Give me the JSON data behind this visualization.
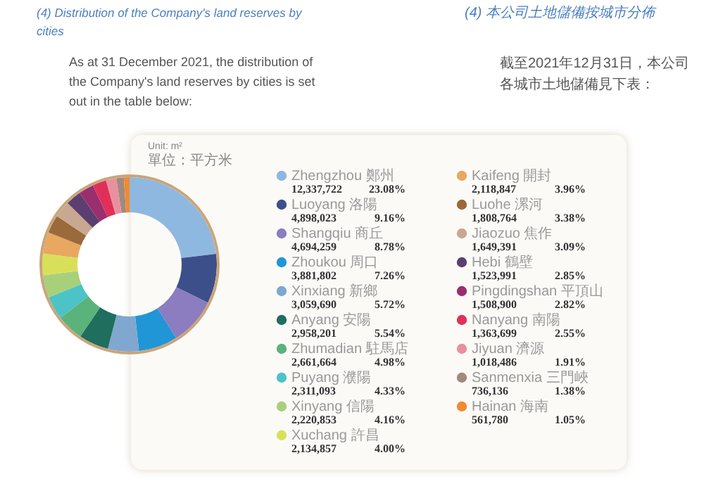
{
  "chart_data": {
    "type": "donut",
    "title": "(4) Distribution of the Company's land reserves by cities",
    "subtitle": "As at 31 December 2021, the distribution of the Company's land reserves by cities is set out in the table below:",
    "annotations": [
      "(4) 本公司土地儲備按城市分佈",
      "截至2021年12月31日，本公司各城市土地儲備見下表：",
      "Unit: m²",
      "單位：平方米"
    ],
    "categories": [
      "Zhengzhou 鄭州",
      "Luoyang 洛陽",
      "Shangqiu 商丘",
      "Zhoukou 周口",
      "Xinxiang 新鄉",
      "Anyang 安陽",
      "Zhumadian 駐馬店",
      "Puyang 濮陽",
      "Xinyang 信陽",
      "Xuchang 許昌",
      "Kaifeng 開封",
      "Luohe 漯河",
      "Jiaozuo 焦作",
      "Hebi 鶴壁",
      "Pingdingshan 平頂山",
      "Nanyang 南陽",
      "Jiyuan 濟源",
      "Sanmenxia 三門峽",
      "Hainan 海南"
    ],
    "values": [
      23.08,
      9.16,
      8.78,
      7.26,
      5.72,
      5.54,
      4.98,
      4.33,
      4.16,
      4.0,
      3.96,
      3.38,
      3.09,
      2.85,
      2.82,
      2.55,
      1.91,
      1.38,
      1.05
    ],
    "value_labels": [
      "12,337,722 23.08%",
      "4,898,023 9.16%",
      "4,694,259 8.78%",
      "3,881,802 7.26%",
      "3,059,690 5.72%",
      "2,958,201 5.54%",
      "2,661,664 4.98%",
      "2,311,093 4.33%",
      "2,220,853 4.16%",
      "2,134,857 4.00%",
      "2,118,847 3.96%",
      "1,808,764 3.38%",
      "1,649,391 3.09%",
      "1,523,991 2.85%",
      "1,508,900 2.82%",
      "1,363,699 2.55%",
      "1,018,486 1.91%",
      "736,136 1.38%",
      "561,780 1.05%"
    ],
    "colors": [
      "#8fb8e0",
      "#3d4f8a",
      "#8c7cc0",
      "#2196d6",
      "#7fa7cf",
      "#1f6e5e",
      "#5ab37a",
      "#4cc3c6",
      "#a8d07a",
      "#d8e05a",
      "#e8a860",
      "#9a6a3a",
      "#c8a890",
      "#5a3f70",
      "#9a2f70",
      "#e0305a",
      "#e890a0",
      "#a08a80",
      "#f08a30"
    ],
    "legend": "right"
  }
}
